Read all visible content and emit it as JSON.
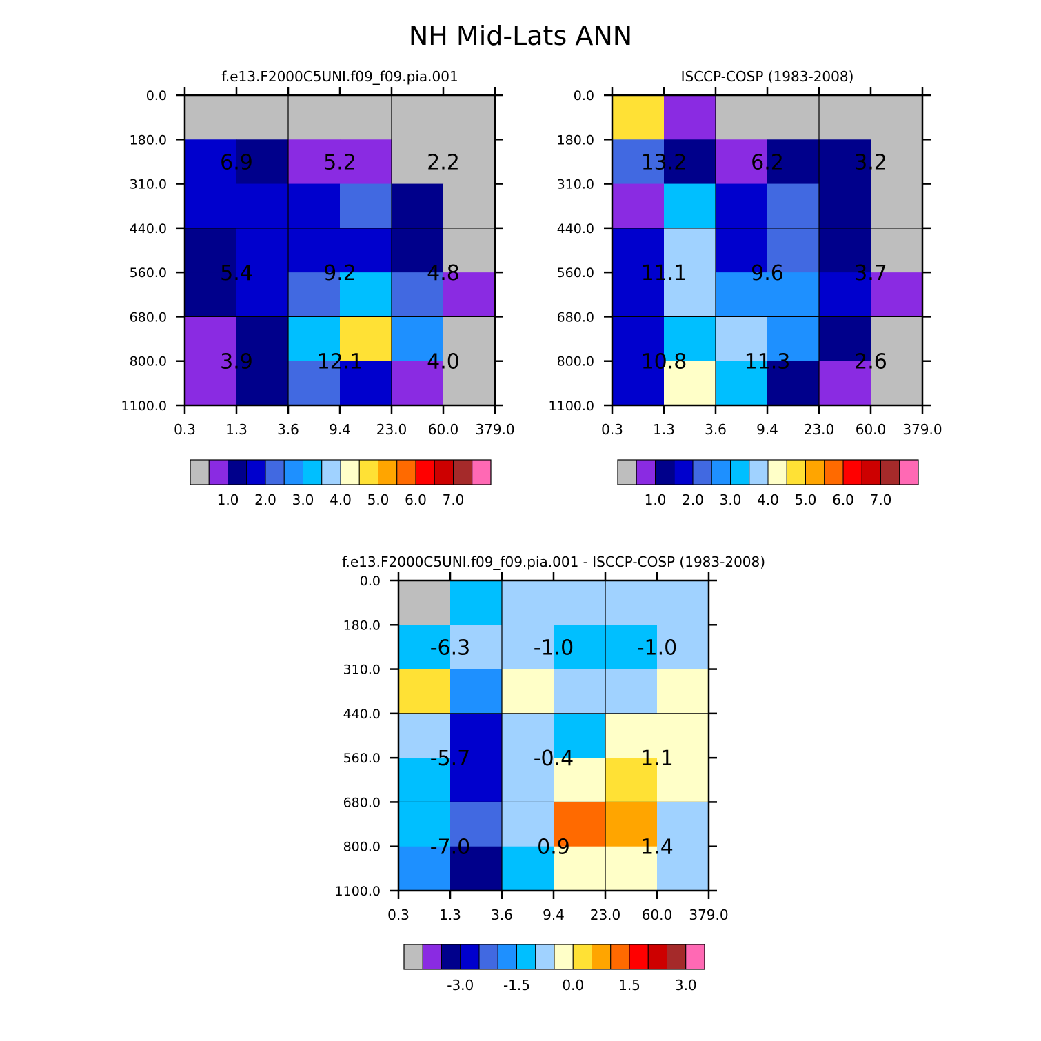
{
  "figure_title": "NH Mid-Lats ANN",
  "colors": {
    "palette": [
      "#bebebe",
      "#8a2be2",
      "#00008b",
      "#0000cd",
      "#4169e1",
      "#1e90ff",
      "#00bfff",
      "#a0d2ff",
      "#ffffc8",
      "#ffe135",
      "#ffa500",
      "#ff6a00",
      "#ff0000",
      "#cd0000",
      "#a52a2a",
      "#ff69b4"
    ]
  },
  "chart_data": [
    {
      "type": "heatmap",
      "title": "f.e13.F2000C5UNI.f09_f09.pia.001",
      "x_tick_labels": [
        "0.3",
        "1.3",
        "3.6",
        "9.4",
        "23.0",
        "60.0",
        "379.0"
      ],
      "y_tick_labels": [
        "0.0",
        "180.0",
        "310.0",
        "440.0",
        "560.0",
        "680.0",
        "800.0",
        "1100.0"
      ],
      "cell_color_index": [
        [
          0,
          0,
          0,
          0,
          0,
          0
        ],
        [
          3,
          2,
          1,
          1,
          0,
          0
        ],
        [
          3,
          3,
          3,
          4,
          2,
          0
        ],
        [
          2,
          3,
          3,
          3,
          2,
          0
        ],
        [
          2,
          3,
          4,
          6,
          4,
          1
        ],
        [
          1,
          2,
          6,
          9,
          5,
          0
        ],
        [
          1,
          2,
          4,
          3,
          1,
          0
        ]
      ],
      "group_labels": [
        [
          "6.9",
          "5.2",
          "2.2"
        ],
        [
          "5.4",
          "9.2",
          "4.8"
        ],
        [
          "3.9",
          "12.1",
          "4.0"
        ]
      ],
      "colorbar": {
        "labels": [
          "1.0",
          "2.0",
          "3.0",
          "4.0",
          "5.0",
          "6.0",
          "7.0"
        ]
      }
    },
    {
      "type": "heatmap",
      "title": "ISCCP-COSP (1983-2008)",
      "x_tick_labels": [
        "0.3",
        "1.3",
        "3.6",
        "9.4",
        "23.0",
        "60.0",
        "379.0"
      ],
      "y_tick_labels": [
        "0.0",
        "180.0",
        "310.0",
        "440.0",
        "560.0",
        "680.0",
        "800.0",
        "1100.0"
      ],
      "cell_color_index": [
        [
          9,
          1,
          0,
          0,
          0,
          0
        ],
        [
          4,
          2,
          1,
          2,
          2,
          0
        ],
        [
          1,
          6,
          3,
          4,
          2,
          0
        ],
        [
          3,
          7,
          3,
          4,
          2,
          0
        ],
        [
          3,
          7,
          5,
          5,
          3,
          1
        ],
        [
          3,
          6,
          7,
          5,
          2,
          0
        ],
        [
          3,
          8,
          6,
          2,
          1,
          0
        ]
      ],
      "group_labels": [
        [
          "13.2",
          "6.2",
          "3.2"
        ],
        [
          "11.1",
          "9.6",
          "3.7"
        ],
        [
          "10.8",
          "11.3",
          "2.6"
        ]
      ],
      "colorbar": {
        "labels": [
          "1.0",
          "2.0",
          "3.0",
          "4.0",
          "5.0",
          "6.0",
          "7.0"
        ]
      }
    },
    {
      "type": "heatmap",
      "title": "f.e13.F2000C5UNI.f09_f09.pia.001 - ISCCP-COSP (1983-2008)",
      "x_tick_labels": [
        "0.3",
        "1.3",
        "3.6",
        "9.4",
        "23.0",
        "60.0",
        "379.0"
      ],
      "y_tick_labels": [
        "0.0",
        "180.0",
        "310.0",
        "440.0",
        "560.0",
        "680.0",
        "800.0",
        "1100.0"
      ],
      "cell_color_index": [
        [
          0,
          6,
          7,
          7,
          7,
          7
        ],
        [
          6,
          7,
          7,
          6,
          6,
          7
        ],
        [
          9,
          5,
          8,
          7,
          7,
          8
        ],
        [
          7,
          3,
          7,
          6,
          8,
          8
        ],
        [
          6,
          3,
          7,
          8,
          9,
          8
        ],
        [
          6,
          4,
          7,
          11,
          10,
          7
        ],
        [
          5,
          2,
          6,
          8,
          8,
          7
        ]
      ],
      "group_labels": [
        [
          "-6.3",
          "-1.0",
          "-1.0"
        ],
        [
          "-5.7",
          "-0.4",
          "1.1"
        ],
        [
          "-7.0",
          "0.9",
          "1.4"
        ]
      ],
      "colorbar": {
        "labels": [
          "-3.0",
          "-1.5",
          "0.0",
          "1.5",
          "3.0"
        ]
      }
    }
  ]
}
